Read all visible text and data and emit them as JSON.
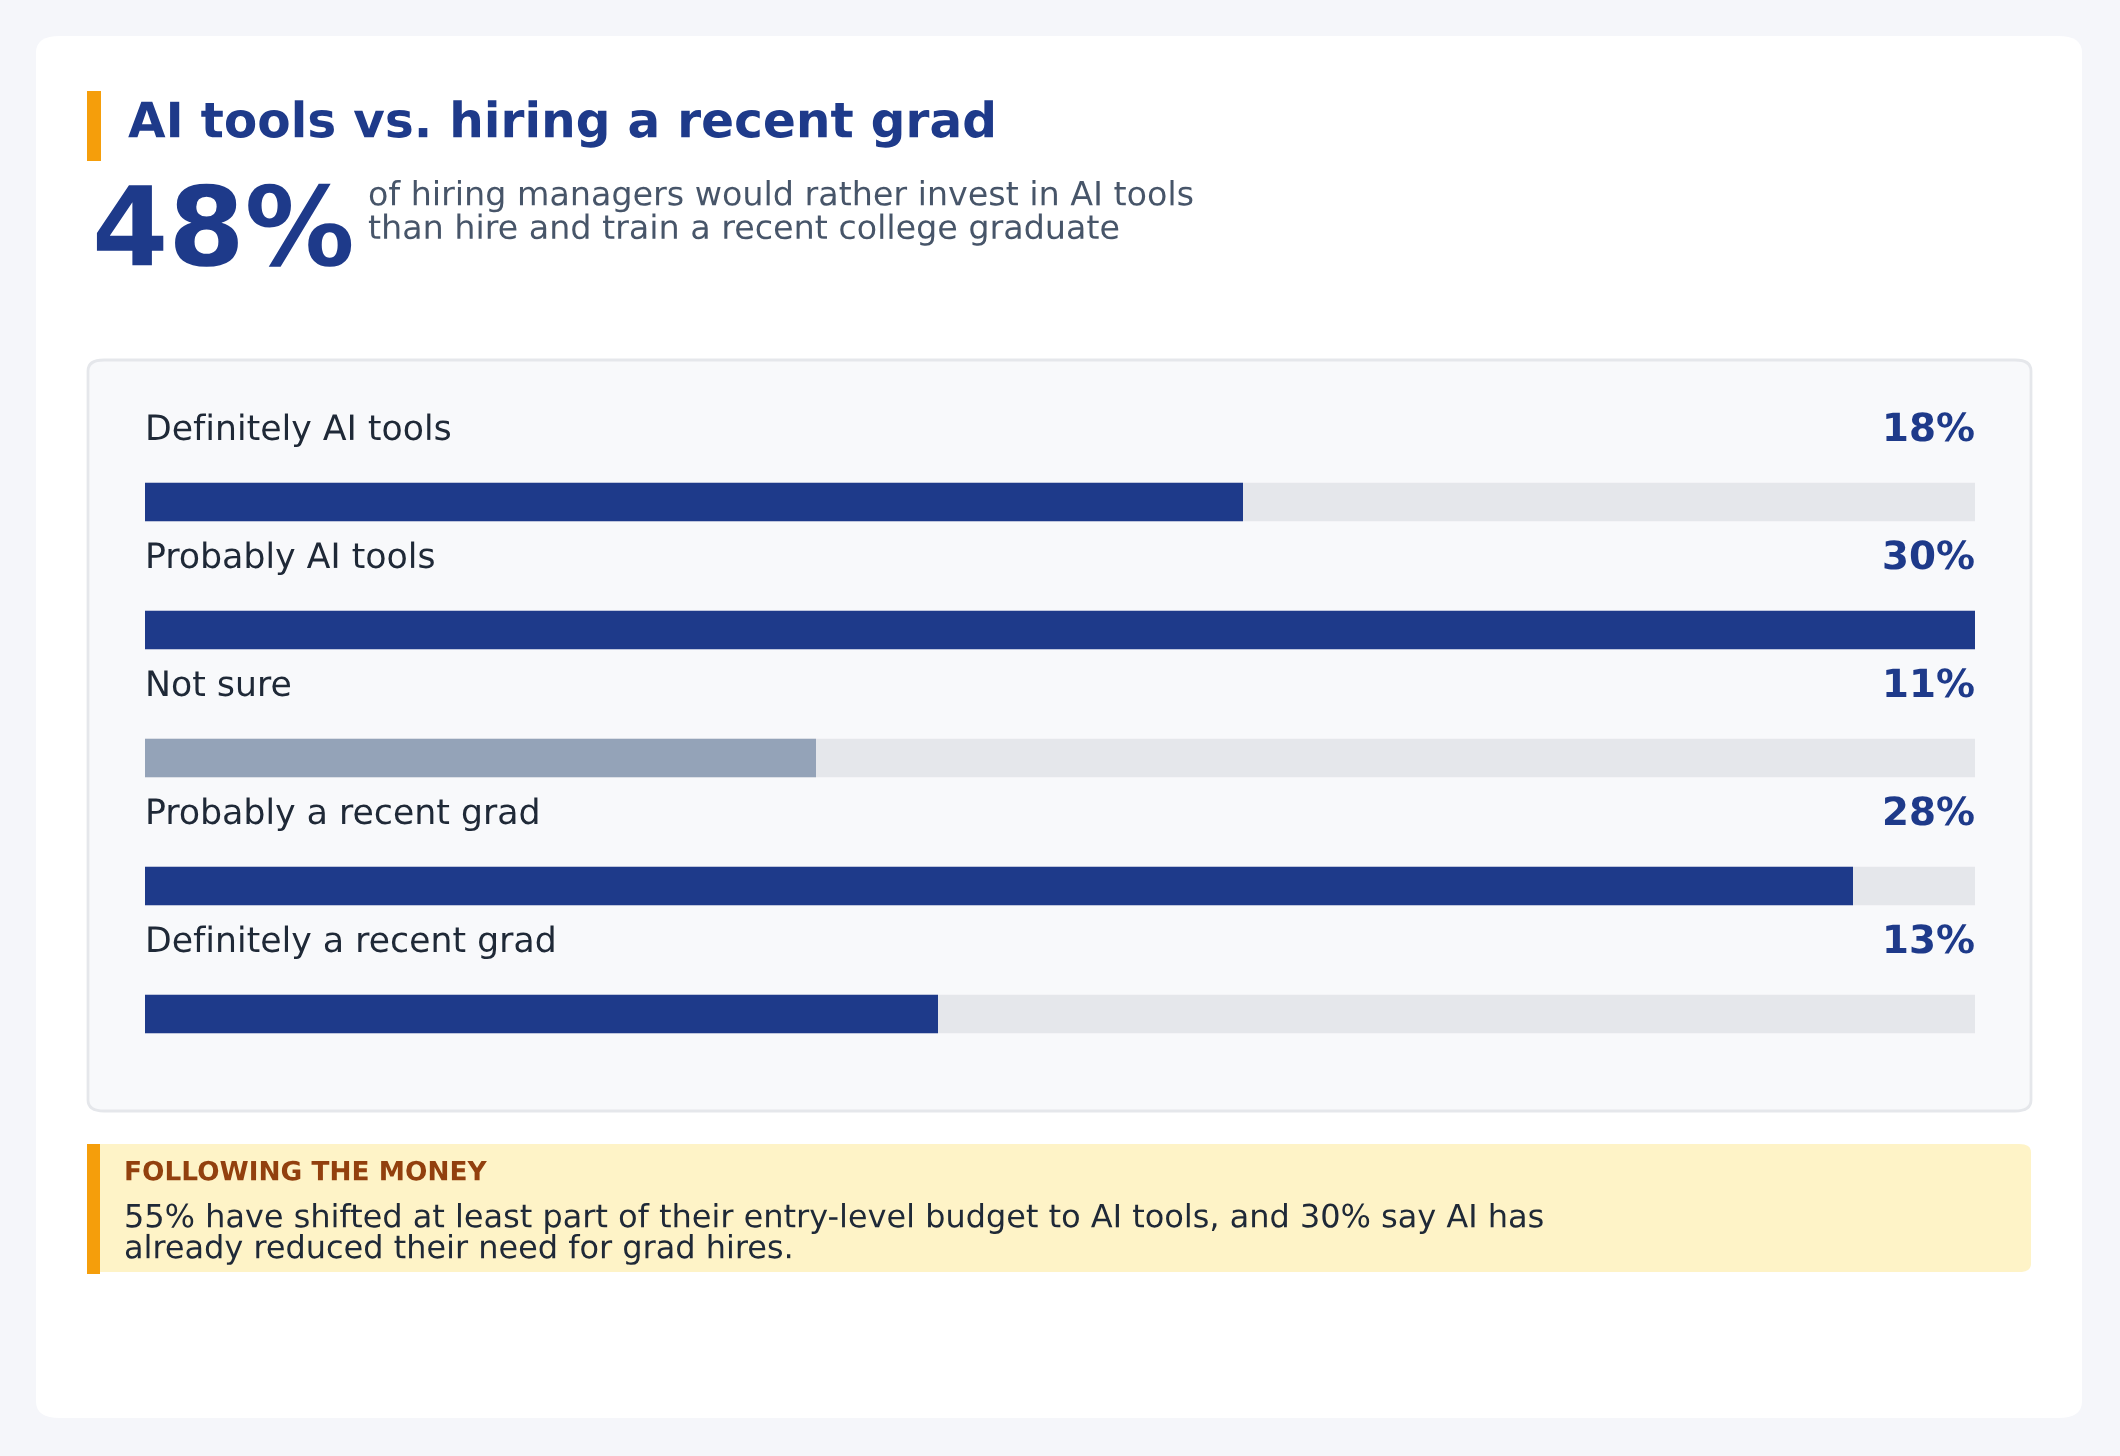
{
  "chart_data": {
    "type": "bar",
    "orientation": "horizontal",
    "xlim": [
      0,
      30
    ],
    "title": "AI tools vs. hiring a recent grad",
    "categories": [
      "Definitely AI tools",
      "Probably AI tools",
      "Not sure",
      "Probably a recent grad",
      "Definitely a recent grad"
    ],
    "values": [
      18,
      30,
      11,
      28,
      13
    ],
    "value_labels": [
      "18%",
      "30%",
      "11%",
      "28%",
      "13%"
    ],
    "colors": [
      "#1e3a8a",
      "#1e3a8a",
      "#94a3b8",
      "#1e3a8a",
      "#1e3a8a"
    ],
    "annotations": [
      "48%",
      "of hiring managers would rather invest in AI tools than hire and train a recent college graduate",
      "FOLLOWING THE MONEY",
      "55% have shifted at least part of their entry-level budget to AI tools, and 30% say AI has already reduced their need for grad hires."
    ],
    "tick_labels": false
  }
}
